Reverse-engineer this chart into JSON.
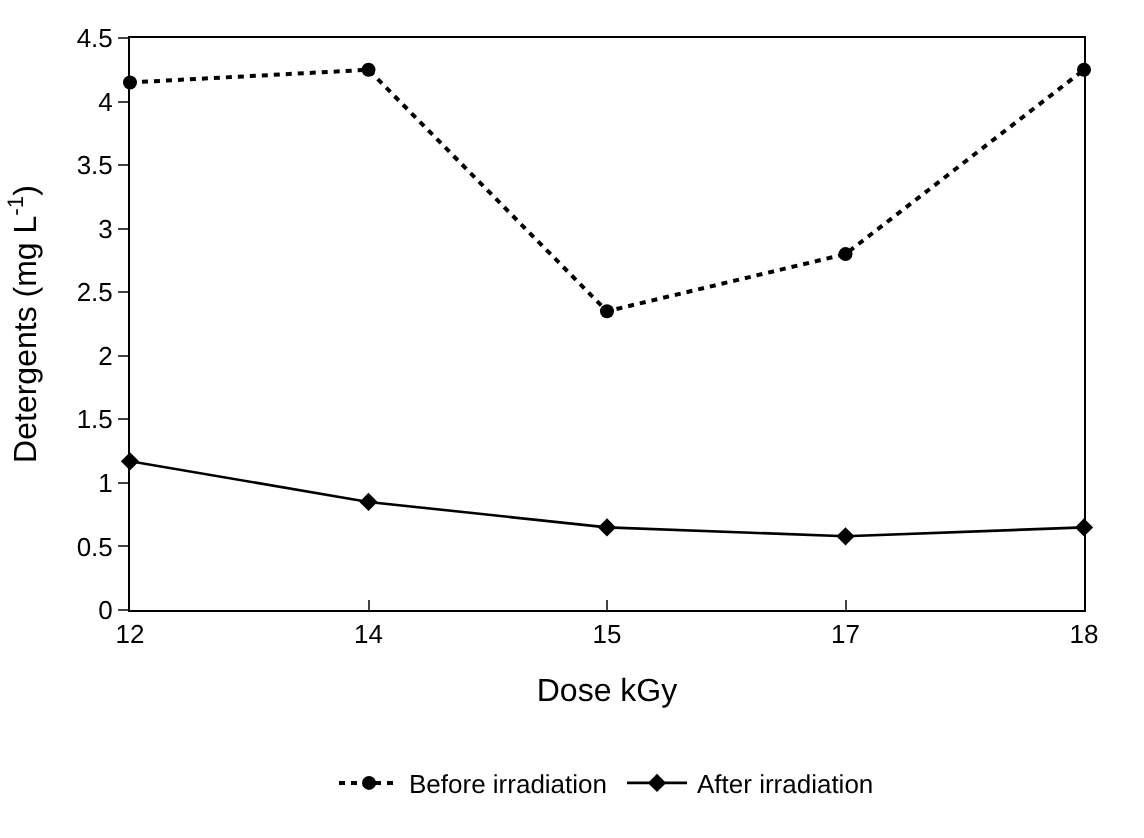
{
  "chart_data": {
    "type": "line",
    "xlabel": "Dose kGy",
    "ylabel": "Detergents (mg L$^{-1}$)",
    "categories": [
      "12",
      "14",
      "15",
      "17",
      "18"
    ],
    "series": [
      {
        "name": "Before irradiation",
        "color": "#000000",
        "values": [
          4.15,
          4.25,
          2.35,
          2.8,
          4.25
        ],
        "marker": "circle",
        "line_style": "dotted"
      },
      {
        "name": "After irradiation",
        "color": "#000000",
        "values": [
          1.17,
          0.85,
          0.65,
          0.58,
          0.65
        ],
        "marker": "diamond",
        "line_style": "solid"
      }
    ],
    "ylim": [
      0,
      4.5
    ],
    "yticks": [
      0,
      0.5,
      1,
      1.5,
      2,
      2.5,
      3,
      3.5,
      4,
      4.5
    ],
    "legend": "bottom"
  }
}
